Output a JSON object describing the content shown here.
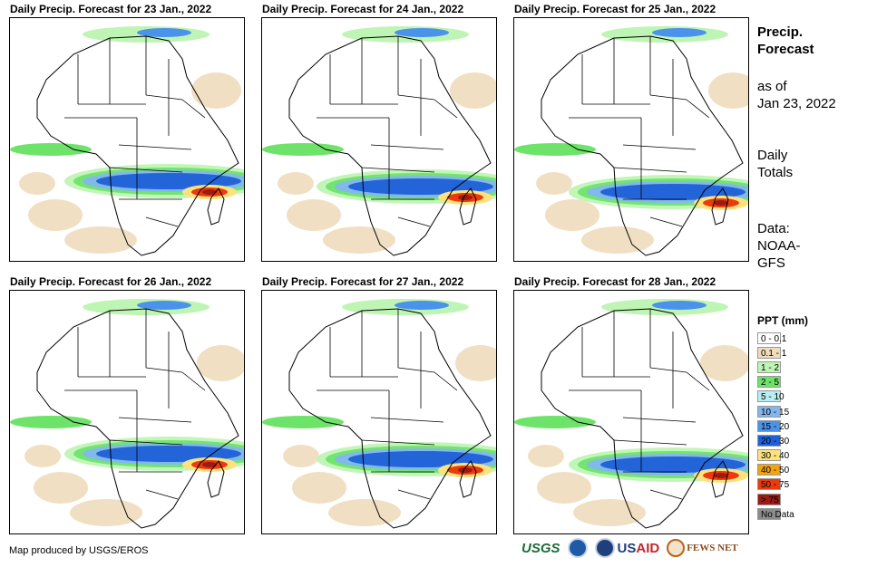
{
  "panels": [
    {
      "title": "Daily Precip. Forecast for 23 Jan., 2022"
    },
    {
      "title": "Daily Precip. Forecast for 24 Jan., 2022"
    },
    {
      "title": "Daily Precip. Forecast for 25 Jan., 2022"
    },
    {
      "title": "Daily Precip. Forecast for 26 Jan., 2022"
    },
    {
      "title": "Daily Precip. Forecast for 27 Jan., 2022"
    },
    {
      "title": "Daily Precip. Forecast for 28 Jan., 2022"
    }
  ],
  "sidebar": {
    "title_line1": "Precip.",
    "title_line2": "Forecast",
    "asof_line1": "as of",
    "asof_line2": "Jan 23, 2022",
    "daily_line1": "Daily",
    "daily_line2": "Totals",
    "data_line1": "Data:",
    "data_line2": "NOAA-",
    "data_line3": "GFS"
  },
  "legend": {
    "title": "PPT (mm)",
    "items": [
      {
        "label": "0 - 0.1",
        "color": "#ffffff"
      },
      {
        "label": "0.1 - 1",
        "color": "#eedcbd"
      },
      {
        "label": "1 - 2",
        "color": "#bff5b4"
      },
      {
        "label": "2 - 5",
        "color": "#6ee36a"
      },
      {
        "label": "5 - 10",
        "color": "#b6eef2"
      },
      {
        "label": "10 - 15",
        "color": "#82b6ef"
      },
      {
        "label": "15 - 20",
        "color": "#4b92ea"
      },
      {
        "label": "20 - 30",
        "color": "#1f5fd8"
      },
      {
        "label": "30 - 40",
        "color": "#fce27d"
      },
      {
        "label": "40 - 50",
        "color": "#f5a30c"
      },
      {
        "label": "50 - 75",
        "color": "#ec3a0c"
      },
      {
        "label": "> 75",
        "color": "#9b1a12"
      },
      {
        "label": "No Data",
        "color": "#8c8c8c"
      }
    ]
  },
  "footer": {
    "credit": "Map produced by USGS/EROS",
    "logo_usgs": "USGS",
    "logo_usaid_a": "US",
    "logo_usaid_b": "AID",
    "logo_fews": "FEWS NET"
  }
}
